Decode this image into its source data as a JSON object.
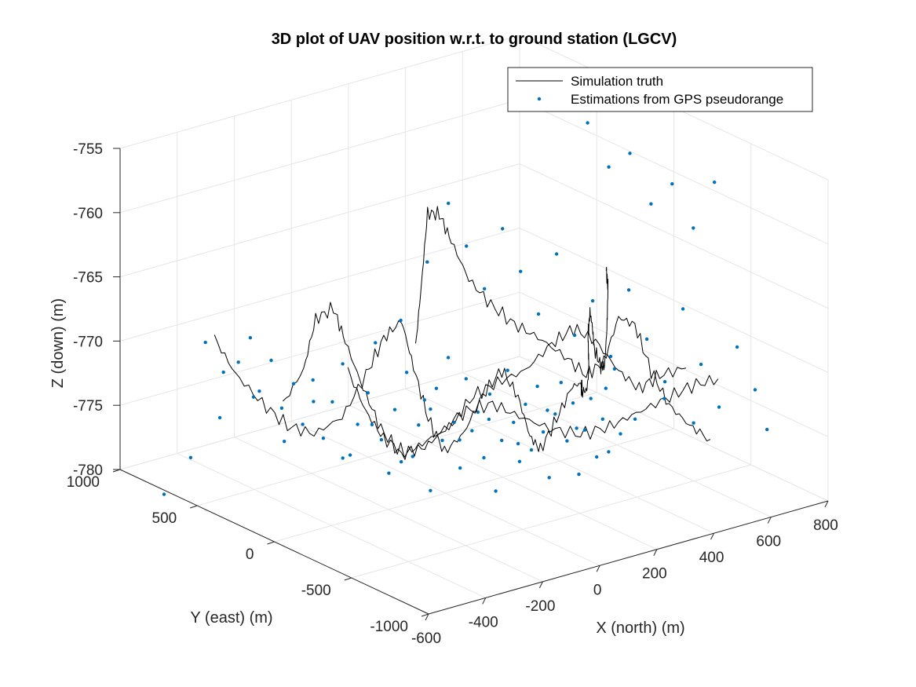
{
  "chart_data": {
    "type": "scatter",
    "projection": "3d",
    "title": "3D plot of UAV position w.r.t. to ground station (LGCV)",
    "xlabel": "X (north) (m)",
    "ylabel": "Y (east) (m)",
    "zlabel": "Z (down) (m)",
    "xlim": [
      -600,
      800
    ],
    "ylim": [
      -1000,
      1000
    ],
    "zlim": [
      -780,
      -755
    ],
    "x_ticks": [
      "-600",
      "-400",
      "-200",
      "0",
      "200",
      "400",
      "600",
      "800"
    ],
    "y_ticks": [
      "-1000",
      "-500",
      "0",
      "500",
      "1000"
    ],
    "z_ticks": [
      "-780",
      "-775",
      "-770",
      "-765",
      "-760",
      "-755"
    ],
    "grid": true,
    "legend_position": "top-right",
    "colors": {
      "truth": "#000000",
      "estimates": "#0072BD"
    },
    "series": [
      {
        "name": "Simulation truth",
        "kind": "line",
        "points": [
          [
            -410,
            740,
            -769.5
          ],
          [
            -380,
            660,
            -772
          ],
          [
            -340,
            560,
            -774
          ],
          [
            -300,
            470,
            -775.5
          ],
          [
            -250,
            390,
            -776
          ],
          [
            -200,
            300,
            -774.5
          ],
          [
            -160,
            220,
            -771
          ],
          [
            -130,
            160,
            -768
          ],
          [
            -100,
            100,
            -766.5
          ],
          [
            -80,
            60,
            -770
          ],
          [
            -50,
            20,
            -774
          ],
          [
            -20,
            -30,
            -776.5
          ],
          [
            20,
            -80,
            -775
          ],
          [
            60,
            -130,
            -772
          ],
          [
            100,
            -180,
            -770
          ],
          [
            130,
            -230,
            -772
          ],
          [
            150,
            -270,
            -775
          ],
          [
            170,
            -300,
            -776
          ],
          [
            200,
            -350,
            -773.5
          ],
          [
            240,
            -380,
            -771
          ],
          [
            300,
            -330,
            -771.5
          ],
          [
            340,
            -250,
            -772.5
          ],
          [
            380,
            -180,
            -773.5
          ],
          [
            430,
            -120,
            -774
          ],
          [
            470,
            -60,
            -773
          ],
          [
            510,
            20,
            -771
          ],
          [
            560,
            100,
            -770
          ],
          [
            600,
            160,
            -771.5
          ],
          [
            640,
            220,
            -774
          ],
          [
            690,
            270,
            -776
          ],
          [
            730,
            320,
            -776.5
          ],
          [
            760,
            360,
            -774
          ],
          [
            780,
            390,
            -771
          ],
          [
            790,
            420,
            -770
          ]
        ]
      },
      {
        "name": "Simulation truth",
        "kind": "line",
        "points": [
          [
            -300,
            500,
            -774
          ],
          [
            -270,
            420,
            -771
          ],
          [
            -250,
            380,
            -767
          ],
          [
            -220,
            320,
            -766
          ],
          [
            -200,
            280,
            -768.5
          ],
          [
            -170,
            220,
            -772
          ],
          [
            -140,
            160,
            -775
          ],
          [
            -100,
            100,
            -777
          ],
          [
            -60,
            40,
            -776
          ],
          [
            -10,
            -40,
            -774.5
          ],
          [
            40,
            -110,
            -772
          ],
          [
            90,
            -170,
            -771
          ],
          [
            150,
            -240,
            -770
          ],
          [
            210,
            -300,
            -768
          ],
          [
            270,
            -330,
            -767
          ],
          [
            320,
            -380,
            -768
          ],
          [
            380,
            -420,
            -770.5
          ],
          [
            430,
            -460,
            -772
          ],
          [
            480,
            -500,
            -771
          ],
          [
            540,
            -560,
            -770.5
          ]
        ]
      },
      {
        "name": "Simulation truth",
        "kind": "line",
        "points": [
          [
            -40,
            120,
            -769
          ],
          [
            -30,
            100,
            -764
          ],
          [
            -20,
            80,
            -758.5
          ],
          [
            0,
            40,
            -758.5
          ],
          [
            20,
            0,
            -760.5
          ],
          [
            60,
            -40,
            -763.5
          ],
          [
            110,
            -90,
            -765.5
          ],
          [
            160,
            -150,
            -767
          ],
          [
            210,
            -210,
            -768
          ],
          [
            270,
            -270,
            -769.5
          ],
          [
            320,
            -320,
            -771
          ],
          [
            360,
            -360,
            -770
          ],
          [
            390,
            -400,
            -766.5
          ],
          [
            420,
            -450,
            -767
          ],
          [
            450,
            -500,
            -770.5
          ],
          [
            480,
            -560,
            -773
          ],
          [
            520,
            -620,
            -774.5
          ],
          [
            560,
            -680,
            -775.5
          ]
        ]
      },
      {
        "name": "Simulation truth",
        "kind": "line",
        "points": [
          [
            -180,
            300,
            -771
          ],
          [
            -150,
            240,
            -774
          ],
          [
            -120,
            180,
            -776
          ],
          [
            -80,
            120,
            -777
          ],
          [
            -40,
            60,
            -776.5
          ],
          [
            0,
            0,
            -775
          ],
          [
            40,
            -60,
            -773.5
          ],
          [
            100,
            -120,
            -773
          ],
          [
            160,
            -180,
            -774
          ],
          [
            230,
            -250,
            -775
          ],
          [
            300,
            -320,
            -775.5
          ],
          [
            370,
            -380,
            -775
          ],
          [
            430,
            -440,
            -774
          ],
          [
            500,
            -500,
            -773
          ],
          [
            560,
            -560,
            -772
          ],
          [
            620,
            -620,
            -771.5
          ]
        ]
      }
    ],
    "estimates": {
      "name": "Estimations from GPS pseudorange",
      "kind": "markers",
      "points": [
        [
          -420,
          780,
          -770
        ],
        [
          -400,
          700,
          -772
        ],
        [
          -380,
          640,
          -771
        ],
        [
          -360,
          600,
          -769
        ],
        [
          -350,
          560,
          -773
        ],
        [
          -330,
          520,
          -770.5
        ],
        [
          -320,
          470,
          -774
        ],
        [
          -300,
          430,
          -772
        ],
        [
          -290,
          390,
          -775
        ],
        [
          -270,
          360,
          -771.5
        ],
        [
          -250,
          330,
          -776
        ],
        [
          -240,
          290,
          -773
        ],
        [
          -220,
          260,
          -770
        ],
        [
          -210,
          230,
          -777
        ],
        [
          -200,
          200,
          -774.5
        ],
        [
          -180,
          170,
          -772
        ],
        [
          -170,
          140,
          -768
        ],
        [
          -160,
          120,
          -775.5
        ],
        [
          -150,
          90,
          -778
        ],
        [
          -140,
          70,
          -773
        ],
        [
          -130,
          50,
          -766
        ],
        [
          -120,
          30,
          -770
        ],
        [
          -110,
          10,
          -776.5
        ],
        [
          -100,
          -10,
          -774
        ],
        [
          -90,
          -30,
          -772
        ],
        [
          -80,
          -50,
          -779
        ],
        [
          -70,
          -70,
          -771
        ],
        [
          -60,
          -90,
          -775
        ],
        [
          -50,
          -110,
          -768.5
        ],
        [
          -40,
          -130,
          -773.5
        ],
        [
          -30,
          -150,
          -777
        ],
        [
          -20,
          -170,
          -770
        ],
        [
          -10,
          -190,
          -774
        ],
        [
          0,
          -210,
          -772.5
        ],
        [
          10,
          -230,
          -776
        ],
        [
          20,
          -250,
          -771
        ],
        [
          30,
          -270,
          -778.5
        ],
        [
          40,
          -290,
          -774.5
        ],
        [
          50,
          -310,
          -769
        ],
        [
          60,
          -330,
          -773
        ],
        [
          70,
          -350,
          -776
        ],
        [
          80,
          -370,
          -771.5
        ],
        [
          90,
          -390,
          -775
        ],
        [
          100,
          -410,
          -770
        ],
        [
          110,
          -430,
          -773.5
        ],
        [
          120,
          -450,
          -777
        ],
        [
          130,
          -470,
          -772
        ],
        [
          140,
          -490,
          -769.5
        ],
        [
          150,
          -510,
          -774
        ],
        [
          160,
          -530,
          -771
        ],
        [
          170,
          -550,
          -776.5
        ],
        [
          180,
          -570,
          -773
        ],
        [
          190,
          -590,
          -770.5
        ],
        [
          200,
          -610,
          -775
        ],
        [
          210,
          -630,
          -772
        ],
        [
          220,
          -650,
          -774.5
        ],
        [
          230,
          -670,
          -768
        ],
        [
          240,
          -690,
          -773
        ],
        [
          260,
          600,
          -767
        ],
        [
          280,
          500,
          -762
        ],
        [
          300,
          420,
          -765
        ],
        [
          320,
          340,
          -768
        ],
        [
          340,
          260,
          -763
        ],
        [
          360,
          180,
          -766
        ],
        [
          380,
          100,
          -769
        ],
        [
          400,
          20,
          -764
        ],
        [
          420,
          -60,
          -770
        ],
        [
          440,
          -140,
          -767
        ],
        [
          460,
          -220,
          -771
        ],
        [
          480,
          -300,
          -765.5
        ],
        [
          500,
          -380,
          -769
        ],
        [
          520,
          -460,
          -772
        ],
        [
          540,
          -540,
          -766
        ],
        [
          560,
          -620,
          -770
        ],
        [
          580,
          -700,
          -773
        ],
        [
          600,
          -780,
          -768
        ],
        [
          620,
          -860,
          -771
        ],
        [
          640,
          -900,
          -774
        ],
        [
          660,
          300,
          -757
        ],
        [
          680,
          200,
          -760
        ],
        [
          700,
          100,
          -758.5
        ],
        [
          720,
          0,
          -762
        ],
        [
          740,
          -100,
          -760
        ],
        [
          760,
          -200,
          -763
        ],
        [
          780,
          -300,
          -759
        ],
        [
          -500,
          900,
          -782
        ],
        [
          -450,
          820,
          -779
        ],
        [
          -380,
          760,
          -776
        ],
        [
          -300,
          690,
          -774.5
        ],
        [
          -230,
          620,
          -778
        ],
        [
          -160,
          560,
          -775
        ],
        [
          -90,
          500,
          -779.5
        ],
        [
          -20,
          440,
          -777
        ],
        [
          50,
          380,
          -780
        ],
        [
          120,
          320,
          -776
        ],
        [
          190,
          260,
          -778.5
        ],
        [
          260,
          200,
          -777
        ],
        [
          330,
          140,
          -779
        ],
        [
          400,
          80,
          -776.5
        ],
        [
          470,
          20,
          -778
        ],
        [
          540,
          -40,
          -775
        ],
        [
          610,
          -100,
          -777.5
        ],
        [
          680,
          -160,
          -776
        ],
        [
          750,
          -220,
          -778
        ]
      ]
    }
  }
}
